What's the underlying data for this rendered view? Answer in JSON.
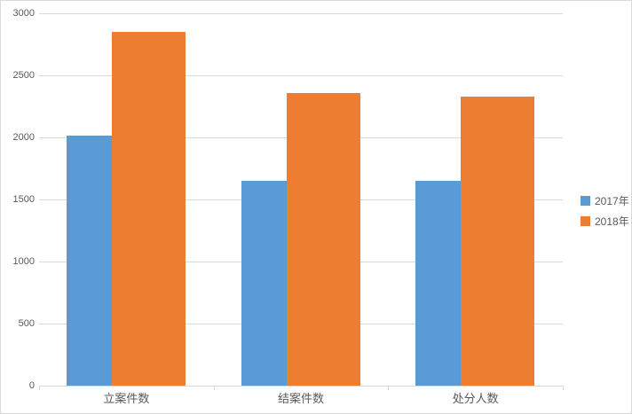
{
  "chart_data": {
    "type": "bar",
    "categories": [
      "立案件数",
      "结案件数",
      "处分人数"
    ],
    "series": [
      {
        "name": "2017年",
        "color": "#5B9BD5",
        "values": [
          2015,
          1650,
          1650
        ]
      },
      {
        "name": "2018年",
        "color": "#ED7D31",
        "values": [
          2850,
          2355,
          2330
        ]
      }
    ],
    "title": "",
    "xlabel": "",
    "ylabel": "",
    "ylim": [
      0,
      3000
    ],
    "yticks": [
      0,
      500,
      1000,
      1500,
      2000,
      2500,
      3000
    ],
    "grid": true,
    "legend_position": "right",
    "colors": {
      "axis_line": "#d9d9d9",
      "gridline": "#d9d9d9",
      "tick_label": "#595959",
      "background": "#ffffff",
      "border": "#d9d9d9"
    }
  }
}
